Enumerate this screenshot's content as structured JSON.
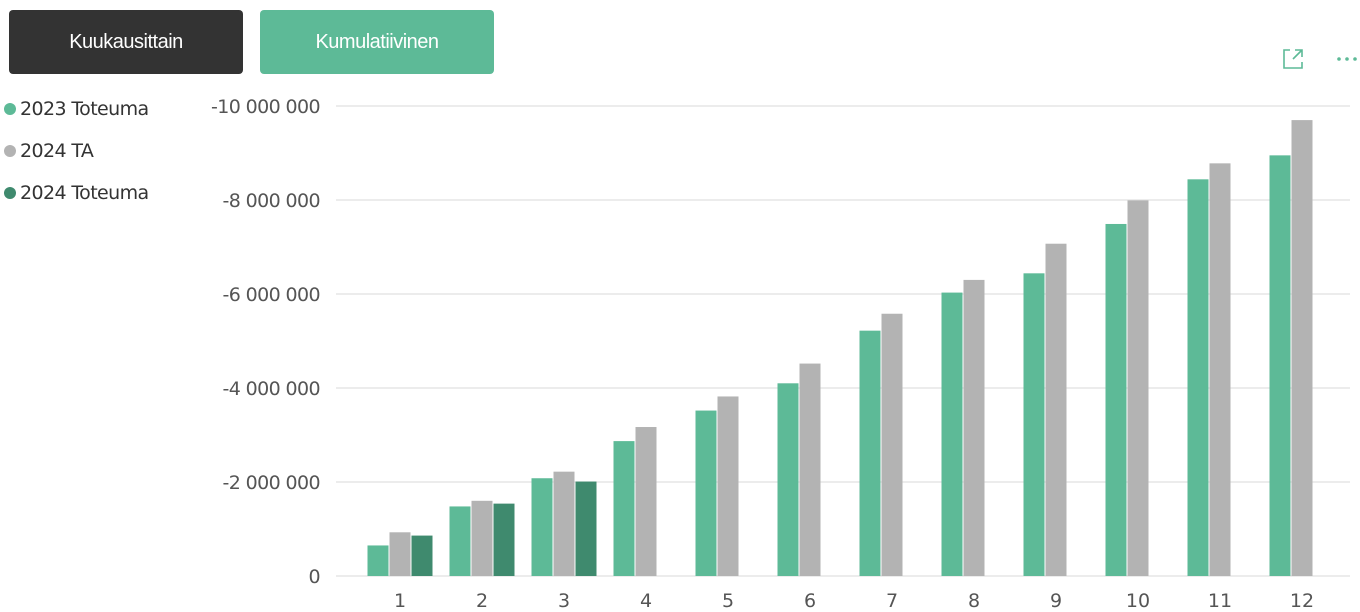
{
  "buttons": {
    "monthly_label": "Kuukausittain",
    "cumulative_label": "Kumulatiivinen"
  },
  "toolbar_icons": [
    "focus-mode-icon",
    "more-options-icon"
  ],
  "colors": {
    "series_2023_toteuma": "#5dba97",
    "series_2024_ta": "#b3b3b3",
    "series_2024_toteuma": "#3f8a6e",
    "button_dark": "#333333",
    "button_accent": "#5dba97",
    "gridline": "#d9d9d9"
  },
  "chart_data": {
    "type": "bar",
    "categories": [
      "1",
      "2",
      "3",
      "4",
      "5",
      "6",
      "7",
      "8",
      "9",
      "10",
      "11",
      "12"
    ],
    "series": [
      {
        "name": "2023 Toteuma",
        "values": [
          650000,
          1480000,
          2080000,
          2870000,
          3520000,
          4100000,
          5220000,
          6030000,
          6440000,
          7490000,
          8440000,
          8950000
        ]
      },
      {
        "name": "2024 TA",
        "values": [
          930000,
          1600000,
          2220000,
          3170000,
          3820000,
          4520000,
          5580000,
          6300000,
          7070000,
          7990000,
          8780000,
          9700000
        ]
      },
      {
        "name": "2024 Toteuma",
        "values": [
          860000,
          1540000,
          2010000,
          null,
          null,
          null,
          null,
          null,
          null,
          null,
          null,
          null
        ]
      }
    ],
    "ylim": [
      0,
      10000000
    ],
    "y_axis_reversed": true,
    "yticks": [
      0,
      2000000,
      4000000,
      6000000,
      8000000,
      10000000
    ],
    "ytick_labels": [
      "0",
      "-2 000 000",
      "-4 000 000",
      "-6 000 000",
      "-8 000 000",
      "-10 000 000"
    ],
    "grid": true,
    "legend_position": "top-left",
    "title": "",
    "xlabel": "",
    "ylabel": ""
  }
}
